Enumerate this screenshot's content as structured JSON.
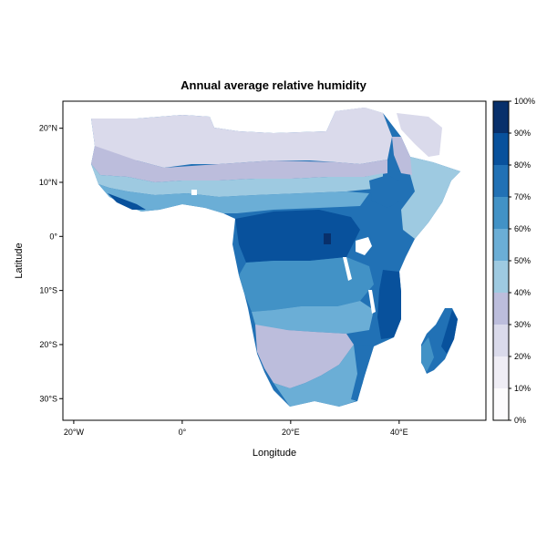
{
  "map": {
    "title": "Annual average relative humidity",
    "x_axis": {
      "label": "Longitude",
      "ticks": [
        {
          "value": -20,
          "label": "20°W"
        },
        {
          "value": 0,
          "label": "0°"
        },
        {
          "value": 20,
          "label": "20°E"
        },
        {
          "value": 40,
          "label": "40°E"
        }
      ],
      "range": [
        -22,
        56
      ]
    },
    "y_axis": {
      "label": "Latitude",
      "ticks": [
        {
          "value": 20,
          "label": "20°N"
        },
        {
          "value": 10,
          "label": "10°N"
        },
        {
          "value": 0,
          "label": "0°"
        },
        {
          "value": -10,
          "label": "10°S"
        },
        {
          "value": -20,
          "label": "20°S"
        },
        {
          "value": -30,
          "label": "30°S"
        }
      ],
      "range": [
        -34,
        25
      ]
    },
    "legend": {
      "position": "right",
      "labels": [
        "0%",
        "10%",
        "20%",
        "30%",
        "40%",
        "50%",
        "60%",
        "70%",
        "80%",
        "90%",
        "100%"
      ],
      "colors": [
        "#fcfbfd",
        "#efedf5",
        "#dadaeb",
        "#bcbddc",
        "#9ecae1",
        "#6baed6",
        "#4292c6",
        "#2171b5",
        "#08519c",
        "#08306b"
      ]
    }
  }
}
